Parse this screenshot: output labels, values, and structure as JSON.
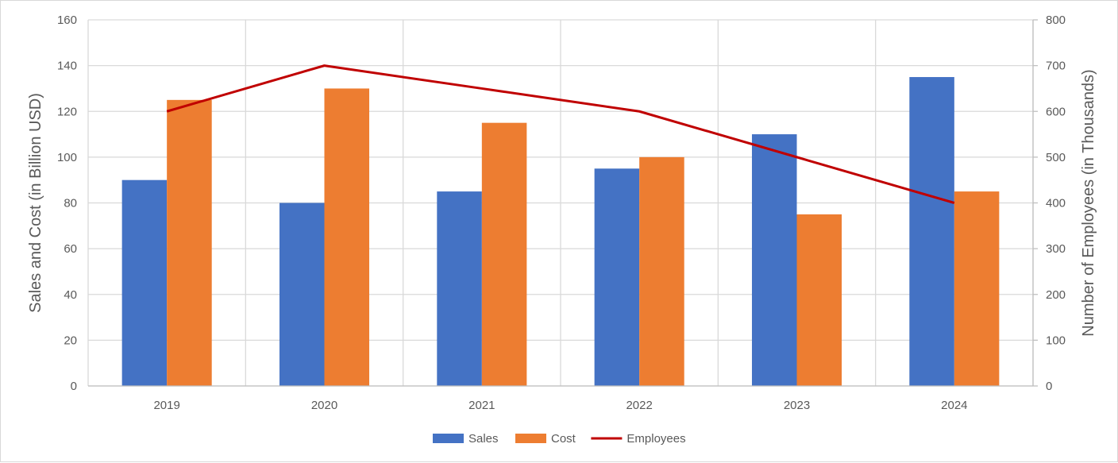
{
  "chart_data": {
    "type": "bar",
    "categories": [
      "2019",
      "2020",
      "2021",
      "2022",
      "2023",
      "2024"
    ],
    "series": [
      {
        "name": "Sales",
        "kind": "bar",
        "axis": "left",
        "color": "#4472c4",
        "values": [
          90,
          80,
          85,
          95,
          110,
          135
        ]
      },
      {
        "name": "Cost",
        "kind": "bar",
        "axis": "left",
        "color": "#ed7d31",
        "values": [
          125,
          130,
          115,
          100,
          75,
          85
        ]
      },
      {
        "name": "Employees",
        "kind": "line",
        "axis": "right",
        "color": "#c00000",
        "values": [
          600,
          700,
          650,
          600,
          500,
          400
        ]
      }
    ],
    "ylabel": "Sales and Cost (in  Billion USD)",
    "y2label": "Number of Employees (in Thousands)",
    "ylim": [
      0,
      160
    ],
    "y2lim": [
      0,
      800
    ],
    "yticks": [
      0,
      20,
      40,
      60,
      80,
      100,
      120,
      140,
      160
    ],
    "y2ticks": [
      0,
      100,
      200,
      300,
      400,
      500,
      600,
      700,
      800
    ],
    "grid": true,
    "legend_position": "bottom-center"
  }
}
